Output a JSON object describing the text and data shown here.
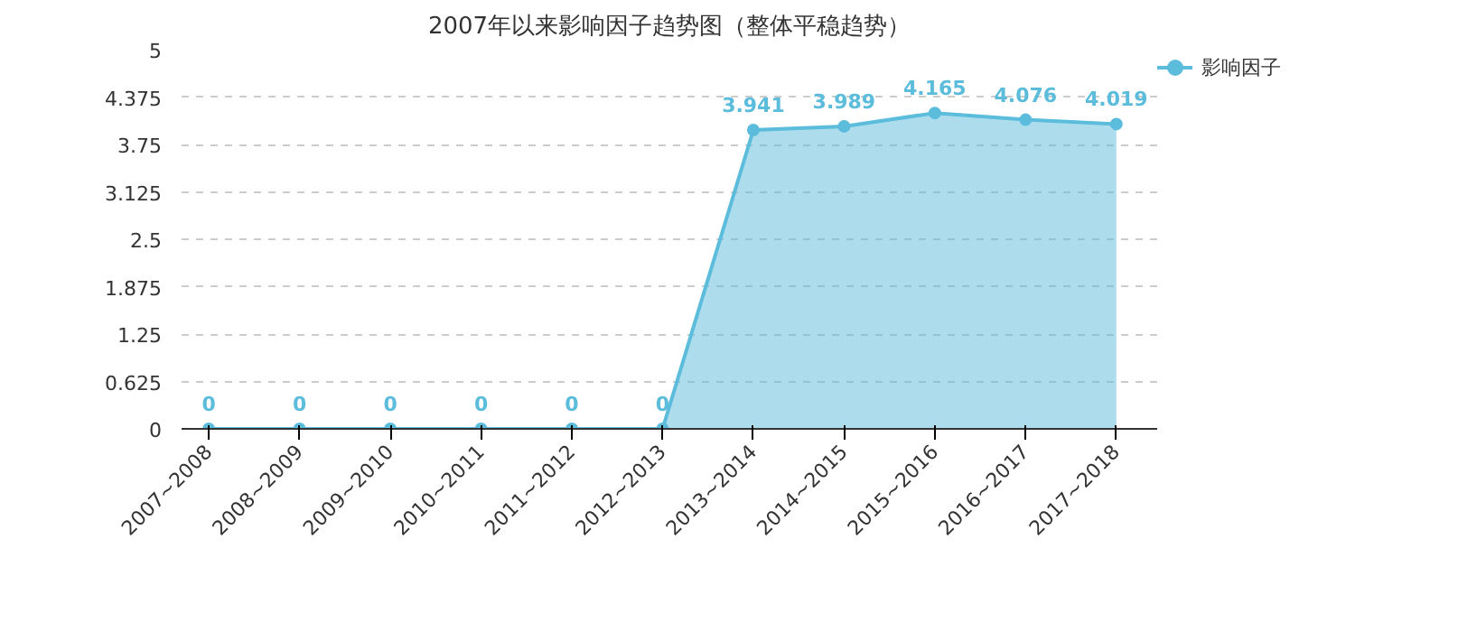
{
  "chart_data": {
    "type": "area",
    "title": "2007年以来影响因子趋势图（整体平稳趋势）",
    "categories": [
      "2007~2008",
      "2008~2009",
      "2009~2010",
      "2010~2011",
      "2011~2012",
      "2012~2013",
      "2013~2014",
      "2014~2015",
      "2015~2016",
      "2016~2017",
      "2017~2018"
    ],
    "series": [
      {
        "name": "影响因子",
        "color": "#5bbcdc",
        "values": [
          0,
          0,
          0,
          0,
          0,
          0,
          3.941,
          3.989,
          4.165,
          4.076,
          4.019
        ]
      }
    ],
    "ylim": [
      0,
      5
    ],
    "yticks": [
      0,
      0.625,
      1.25,
      1.875,
      2.5,
      3.125,
      3.75,
      4.375,
      5
    ],
    "grid": "y",
    "legend": "top right",
    "marker": "circle",
    "data_labels": true
  }
}
